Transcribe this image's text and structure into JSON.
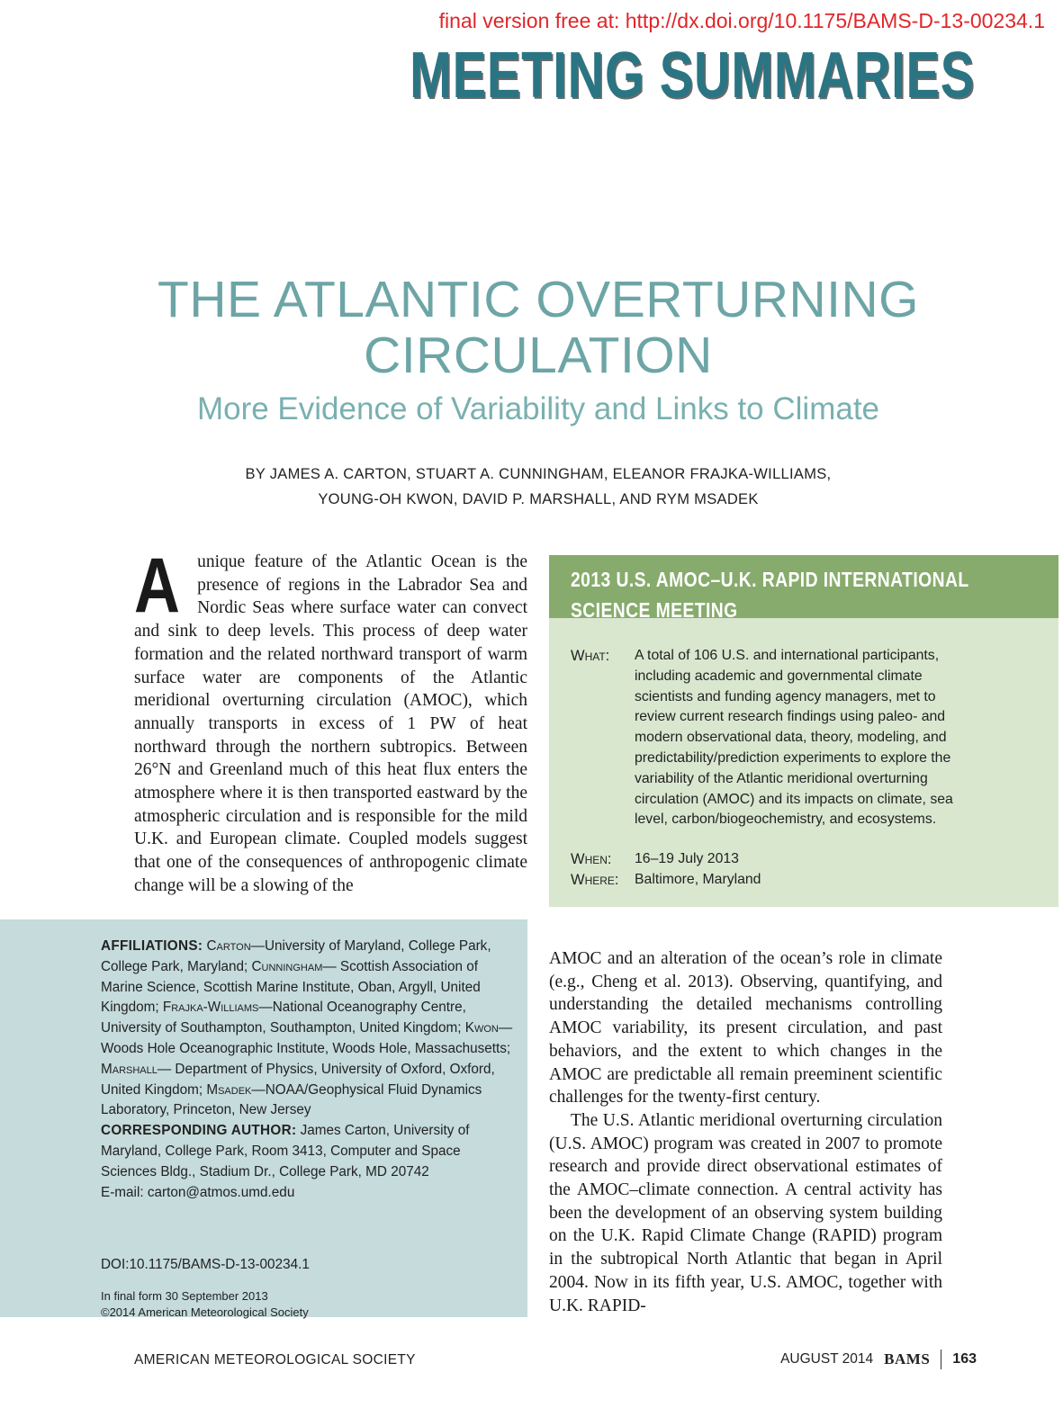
{
  "banner": {
    "doi_link": "final version free at: http://dx.doi.org/10.1175/BAMS-D-13-00234.1"
  },
  "header": {
    "section": "MEETING SUMMARIES"
  },
  "article": {
    "title_line1": "THE ATLANTIC OVERTURNING",
    "title_line2": "CIRCULATION",
    "subtitle": "More Evidence of Variability and Links to Climate",
    "byline_line1": "BY JAMES A. CARTON, STUART A. CUNNINGHAM, ELEANOR FRAJKA-WILLIAMS,",
    "byline_line2": "YOUNG-OH KWON, DAVID P. MARSHALL, AND RYM MSADEK"
  },
  "body": {
    "dropcap": "A",
    "para1_part1": "unique feature of the Atlantic Ocean is the presence of regions in the Labrador Sea and Nordic Seas where surface water can convect and sink to deep levels. This process of deep water formation and the related northward transport of warm surface water are components of the Atlantic meridional overturning circulation (AMOC), which annually transports in excess of 1 PW of heat northward through the northern subtropics. Between 26°N and Greenland much of this heat flux enters the atmosphere where it is then transported eastward by the atmospheric circulation and is responsible for the mild U.K. and European climate. Coupled models suggest that one of the consequences of anthropogenic climate change will be a slowing of the",
    "para1_part2": "AMOC and an alteration of the ocean’s role in climate (e.g., Cheng et al. 2013). Observing, quantifying, and understanding the detailed mechanisms controlling AMOC variability, its present circulation, and past behaviors, and the extent to which changes in the AMOC are predictable all remain preeminent scientific challenges for the twenty-first century.",
    "para2": "The U.S. Atlantic meridional overturning circulation (U.S. AMOC) program was created in 2007 to promote research and provide direct observational estimates of the AMOC–climate connection. A central activity has been the development of an observing system building on the U.K. Rapid Climate Change (RAPID) program in the subtropical North Atlantic that began in April 2004. Now in its fifth year, U.S. AMOC, together with U.K. RAPID-"
  },
  "sidebar": {
    "title": "2013 U.S. AMOC–U.K. RAPID INTERNATIONAL SCIENCE MEETING",
    "what_label": "What:",
    "what_value": "A total of 106 U.S. and international participants, including academic and governmental climate scientists and funding agency managers, met to review current research findings using paleo- and modern observational data, theory, modeling, and predictability/prediction experiments to explore the variability of the Atlantic meridional overturning circulation (AMOC) and its impacts on climate, sea level, carbon/biogeochemistry, and ecosystems.",
    "when_label": "When:",
    "when_value": "16–19 July 2013",
    "where_label": "Where:",
    "where_value": "Baltimore, Maryland"
  },
  "affiliations": {
    "label": "AFFILIATIONS:",
    "carton": "Carton",
    "carton_text": "—University of Maryland, College Park, College Park, Maryland; ",
    "cunningham": "Cunningham",
    "cunningham_text": "— Scottish Association of Marine Science, Scottish Marine Institute, Oban, Argyll, United Kingdom; ",
    "frajka": "Frajka-Williams",
    "frajka_text": "—National Oceanography Centre, University of Southampton, Southampton, United Kingdom; ",
    "kwon": "Kwon",
    "kwon_text": "—Woods Hole Oceanographic Institute, Woods Hole, Massachusetts; ",
    "marshall": "Marshall",
    "marshall_text": "— Department of Physics, University of Oxford, Oxford, United Kingdom; ",
    "msadek": "Msadek",
    "msadek_text": "—NOAA/Geophysical Fluid Dynamics Laboratory, Princeton, New Jersey",
    "corresponding_label": "CORRESPONDING AUTHOR:",
    "corresponding_text": " James Carton, University of Maryland, College Park, Room 3413, Computer and Space Sciences Bldg., Stadium Dr., College Park, MD 20742",
    "email": "E-mail: carton@atmos.umd.edu",
    "doi": "DOI:10.1175/BAMS-D-13-00234.1",
    "final_form": "In final form 30 September 2013",
    "copyright": "©2014 American Meteorological Society"
  },
  "footer": {
    "society": "AMERICAN METEOROLOGICAL SOCIETY",
    "date": "AUGUST 2014",
    "journal": "BAMS",
    "page": "163"
  }
}
